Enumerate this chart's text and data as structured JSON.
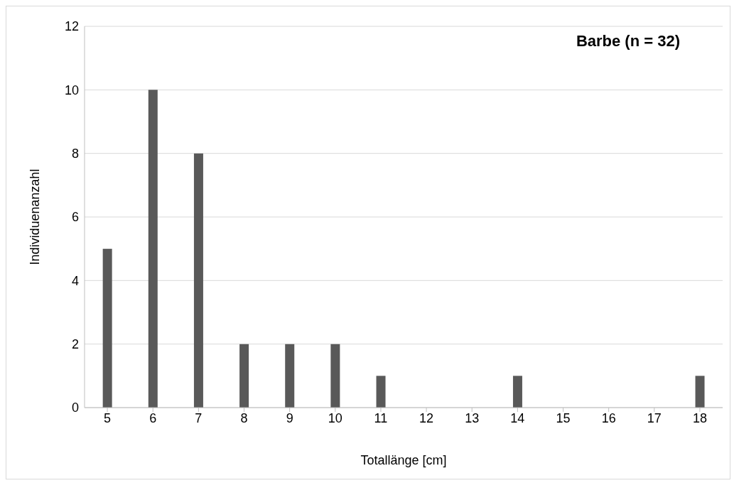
{
  "chart_data": {
    "type": "bar",
    "title": "Barbe (n = 32)",
    "xlabel": "Totallänge [cm]",
    "ylabel": "Individuenanzahl",
    "categories": [
      "5",
      "6",
      "7",
      "8",
      "9",
      "10",
      "11",
      "12",
      "13",
      "14",
      "15",
      "16",
      "17",
      "18"
    ],
    "values": [
      5,
      10,
      8,
      2,
      2,
      2,
      1,
      0,
      0,
      1,
      0,
      0,
      0,
      1
    ],
    "color": "#595959",
    "ylim": [
      0,
      12
    ],
    "yticks": [
      0,
      2,
      4,
      6,
      8,
      10,
      12
    ],
    "grid": "y",
    "legend": false
  }
}
